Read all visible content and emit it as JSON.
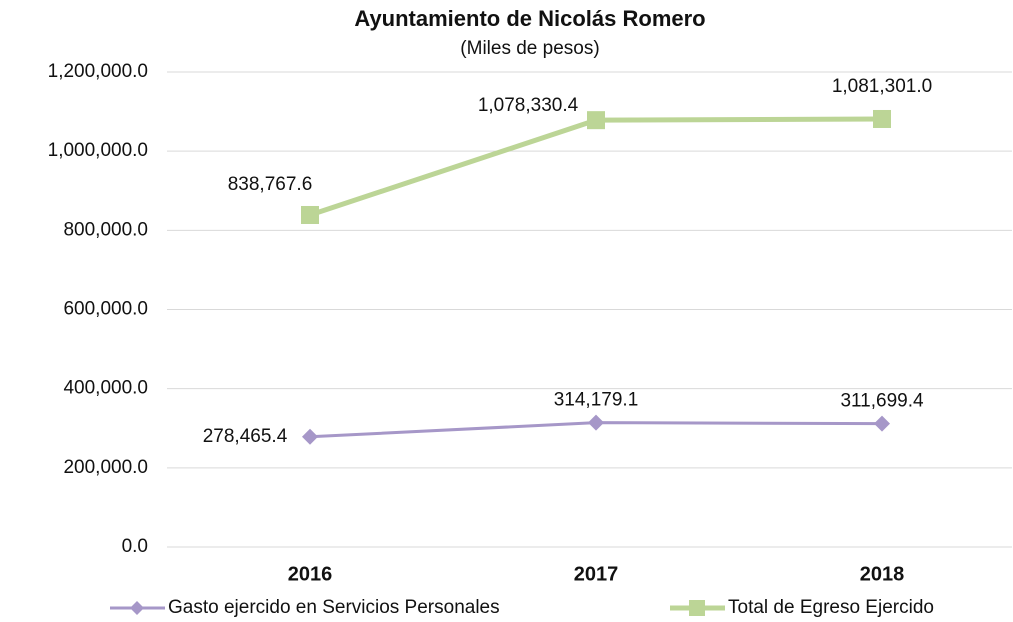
{
  "chart_data": {
    "type": "line",
    "title": "Ayuntamiento de Nicolás Romero",
    "subtitle": "(Miles de pesos)",
    "categories": [
      "2016",
      "2017",
      "2018"
    ],
    "series": [
      {
        "name": "Gasto ejercido en Servicios Personales",
        "color": "#a697c8",
        "marker": "diamond",
        "values": [
          278465.4,
          314179.1,
          311699.4
        ],
        "value_labels": [
          "278,465.4",
          "314,179.1",
          "311,699.4"
        ]
      },
      {
        "name": "Total de Egreso Ejercido",
        "color": "#bcd596",
        "marker": "square",
        "values": [
          838767.6,
          1078330.4,
          1081301.0
        ],
        "value_labels": [
          "838,767.6",
          "1,078,330.4",
          "1,081,301.0"
        ]
      }
    ],
    "ylim": [
      0,
      1200000
    ],
    "yticks": [
      {
        "value": 0,
        "label": "0.0"
      },
      {
        "value": 200000,
        "label": "200,000.0"
      },
      {
        "value": 400000,
        "label": "400,000.0"
      },
      {
        "value": 600000,
        "label": "600,000.0"
      },
      {
        "value": 800000,
        "label": "800,000.0"
      },
      {
        "value": 1000000,
        "label": "1,000,000.0"
      },
      {
        "value": 1200000,
        "label": "1,200,000.0"
      }
    ],
    "grid": true,
    "legend": "bottom"
  }
}
